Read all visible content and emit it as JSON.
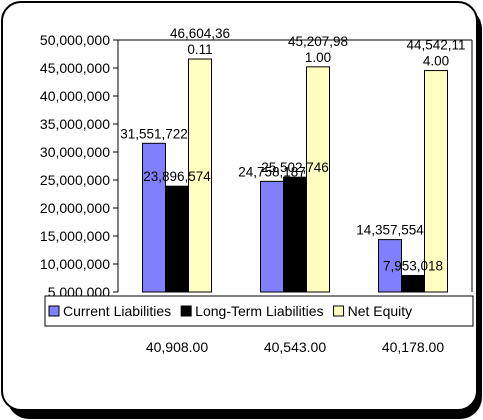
{
  "chart_data": {
    "type": "bar",
    "categories": [
      "40,908.00",
      "40,543.00",
      "40,178.00"
    ],
    "series": [
      {
        "name": "Current Liabilities",
        "color": "#8080ff",
        "values": [
          31551722,
          24758187,
          14357554
        ],
        "labels": [
          [
            "31,551,722"
          ],
          [
            "24,758,187"
          ],
          [
            "14,357,554"
          ]
        ]
      },
      {
        "name": "Long-Term Liabilities",
        "color": "#000000",
        "values": [
          23896574,
          25502746,
          7953018
        ],
        "labels": [
          [
            "23,896,574"
          ],
          [
            "25,502,746"
          ],
          [
            "7,953,018"
          ]
        ]
      },
      {
        "name": "Net Equity",
        "color": "#ffffc0",
        "values": [
          46604360.11,
          45207981.0,
          44542114.0
        ],
        "labels": [
          [
            "46,604,36",
            "0.11"
          ],
          [
            "45,207,98",
            "1.00"
          ],
          [
            "44,542,11",
            "4.00"
          ]
        ]
      }
    ],
    "y_ticks": [
      "5,000,000",
      "10,000,000",
      "15,000,000",
      "20,000,000",
      "25,000,000",
      "30,000,000",
      "35,000,000",
      "40,000,000",
      "45,000,000",
      "50,000,000"
    ],
    "ylim": [
      5000000,
      50000000
    ],
    "title": "",
    "xlabel": "",
    "ylabel": "",
    "legend": "bottom",
    "grid": false
  }
}
